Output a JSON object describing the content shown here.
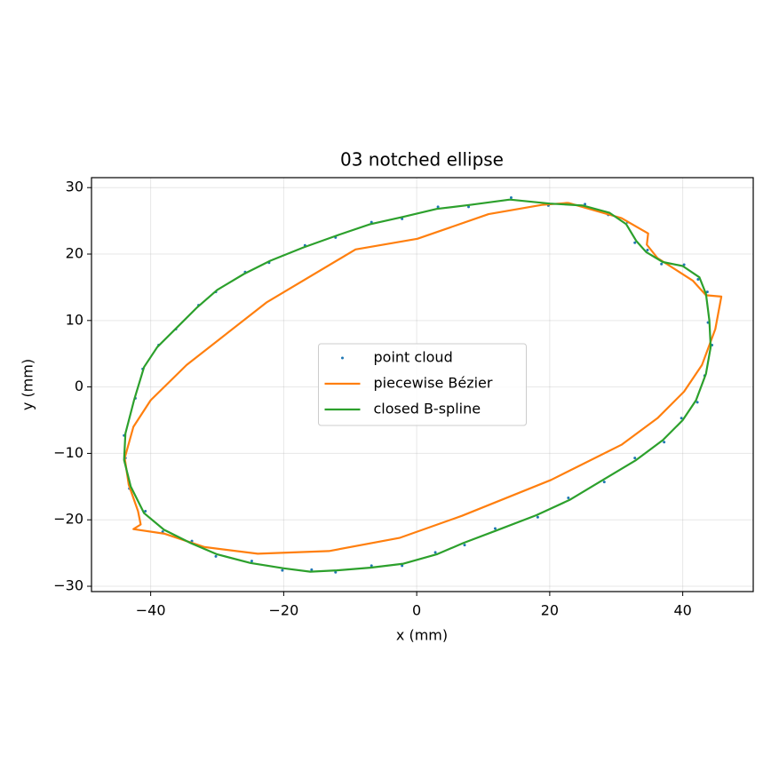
{
  "chart_data": {
    "type": "line",
    "title": "03 notched ellipse",
    "xlabel": "x (mm)",
    "ylabel": "y (mm)",
    "xlim": [
      -48.9,
      50.6
    ],
    "ylim": [
      -30.8,
      31.5
    ],
    "xticks": [
      {
        "value": -40,
        "label": "−40"
      },
      {
        "value": -20,
        "label": "−20"
      },
      0,
      20,
      40
    ],
    "yticks": [
      {
        "value": -30,
        "label": "−30"
      },
      {
        "value": -20,
        "label": "−20"
      },
      {
        "value": -10,
        "label": "−10"
      },
      0,
      10,
      20,
      30
    ],
    "grid": true,
    "legend": "center",
    "series": [
      {
        "name": "point cloud",
        "color": "#1f77b4",
        "marker": "dot",
        "x": [
          14.2,
          19.8,
          25.3,
          28.8,
          31.7,
          32.8,
          34.7,
          36.8,
          40.2,
          42.3,
          43.7,
          43.8,
          44.4,
          43.3,
          42.2,
          39.8,
          37.2,
          32.8,
          28.2,
          22.8,
          18.2,
          11.8,
          7.2,
          2.8,
          -2.2,
          -6.8,
          -12.2,
          -15.8,
          -20.2,
          -24.8,
          -30.2,
          -33.8,
          -38.2,
          -40.8,
          -43.2,
          -43.8,
          -44.0,
          -42.3,
          -41.2,
          -38.8,
          -36.2,
          -32.8,
          -30.2,
          -25.8,
          -22.2,
          -16.8,
          -12.2,
          -6.8,
          -2.2,
          3.2,
          7.8
        ],
        "values": [
          28.5,
          27.3,
          27.5,
          25.9,
          24.8,
          21.7,
          20.6,
          18.5,
          18.4,
          16.2,
          14.3,
          9.7,
          6.3,
          1.7,
          -2.3,
          -4.7,
          -8.3,
          -10.7,
          -14.3,
          -16.7,
          -19.6,
          -21.3,
          -23.8,
          -24.9,
          -26.9,
          -26.9,
          -27.9,
          -27.5,
          -27.6,
          -26.2,
          -25.5,
          -23.2,
          -21.8,
          -18.7,
          -15.3,
          -10.7,
          -7.3,
          -1.7,
          2.7,
          6.3,
          8.7,
          12.3,
          14.3,
          17.3,
          18.7,
          21.3,
          22.5,
          24.8,
          25.3,
          27.1,
          27.1
        ]
      },
      {
        "name": "piecewise Bézier",
        "color": "#ff7f0e",
        "marker": "none",
        "x": [
          22.8,
          30.8,
          34.8,
          34.6,
          36.2,
          41.5,
          43.5,
          45.8,
          44.9,
          42.9,
          40.2,
          36.2,
          30.8,
          20.2,
          6.8,
          -2.5,
          -13.2,
          -23.9,
          -31.9,
          -37.9,
          -42.6,
          -41.5,
          -41.9,
          -43.3,
          -43.9,
          -42.6,
          -40.0,
          -34.6,
          -22.6,
          -9.2,
          0.1,
          10.8,
          18.8,
          22.8
        ],
        "values": [
          27.7,
          25.4,
          23.1,
          21.4,
          19.4,
          16.0,
          13.8,
          13.6,
          8.7,
          3.3,
          -0.7,
          -4.7,
          -8.7,
          -14.0,
          -19.4,
          -22.7,
          -24.7,
          -25.1,
          -24.1,
          -22.1,
          -21.4,
          -20.7,
          -18.7,
          -14.7,
          -10.7,
          -6.0,
          -2.0,
          3.3,
          12.7,
          20.7,
          22.3,
          26.0,
          27.4,
          27.7
        ]
      },
      {
        "name": "closed B-spline",
        "color": "#2ca02c",
        "marker": "none",
        "x": [
          14,
          20,
          25,
          29,
          31.5,
          33,
          34.5,
          37,
          40,
          42.5,
          43.5,
          44,
          44.2,
          43.5,
          42,
          40,
          37,
          33,
          28,
          23,
          18,
          12,
          7,
          3,
          -2,
          -7,
          -12,
          -16,
          -20,
          -25,
          -30,
          -34,
          -38,
          -41,
          -43,
          -44,
          -43.8,
          -42.5,
          -41,
          -39,
          -36,
          -33,
          -30,
          -26,
          -22,
          -17,
          -12,
          -7,
          -2,
          3,
          8,
          14
        ],
        "values": [
          28.2,
          27.6,
          27.3,
          26.2,
          24.5,
          22,
          20.3,
          18.8,
          18.2,
          16.5,
          14,
          10,
          6,
          2,
          -2,
          -5,
          -8,
          -11,
          -14,
          -17,
          -19.3,
          -21.6,
          -23.5,
          -25.2,
          -26.6,
          -27.2,
          -27.6,
          -27.8,
          -27.3,
          -26.5,
          -25.2,
          -23.5,
          -21.5,
          -19,
          -15,
          -11,
          -7,
          -2,
          3,
          6,
          9,
          12,
          14.6,
          17,
          19,
          21,
          22.8,
          24.5,
          25.6,
          26.8,
          27.4,
          28.2
        ]
      }
    ]
  }
}
